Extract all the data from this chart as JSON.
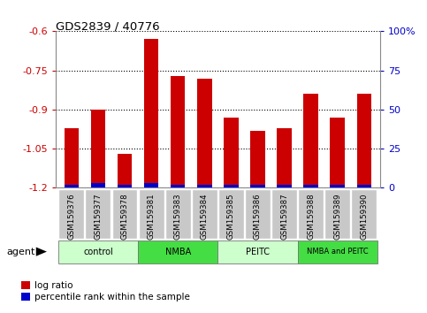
{
  "title": "GDS2839 / 40776",
  "samples": [
    "GSM159376",
    "GSM159377",
    "GSM159378",
    "GSM159381",
    "GSM159383",
    "GSM159384",
    "GSM159385",
    "GSM159386",
    "GSM159387",
    "GSM159388",
    "GSM159389",
    "GSM159390"
  ],
  "log_ratio": [
    -0.97,
    -0.9,
    -1.07,
    -0.63,
    -0.77,
    -0.78,
    -0.93,
    -0.98,
    -0.97,
    -0.84,
    -0.93,
    -0.84
  ],
  "pct_rank": [
    2,
    3,
    2,
    3,
    2,
    2,
    2,
    2,
    2,
    2,
    2,
    2
  ],
  "ylim_left": [
    -1.2,
    -0.6
  ],
  "ylim_right": [
    0,
    100
  ],
  "yticks_left": [
    -1.2,
    -1.05,
    -0.9,
    -0.75,
    -0.6
  ],
  "yticks_right": [
    0,
    25,
    50,
    75,
    100
  ],
  "bar_color_red": "#cc0000",
  "bar_color_blue": "#0000cc",
  "groups": [
    {
      "label": "control",
      "start": 0,
      "end": 3,
      "color": "#ccffcc"
    },
    {
      "label": "NMBA",
      "start": 3,
      "end": 6,
      "color": "#44dd44"
    },
    {
      "label": "PEITC",
      "start": 6,
      "end": 9,
      "color": "#ccffcc"
    },
    {
      "label": "NMBA and PEITC",
      "start": 9,
      "end": 12,
      "color": "#44dd44"
    }
  ],
  "agent_label": "agent",
  "legend_red": "log ratio",
  "legend_blue": "percentile rank within the sample",
  "background_color": "#ffffff",
  "plot_bg_color": "#ffffff",
  "tick_label_color_left": "#cc0000",
  "tick_label_color_right": "#0000cc",
  "grid_color": "#000000",
  "bar_width": 0.55
}
